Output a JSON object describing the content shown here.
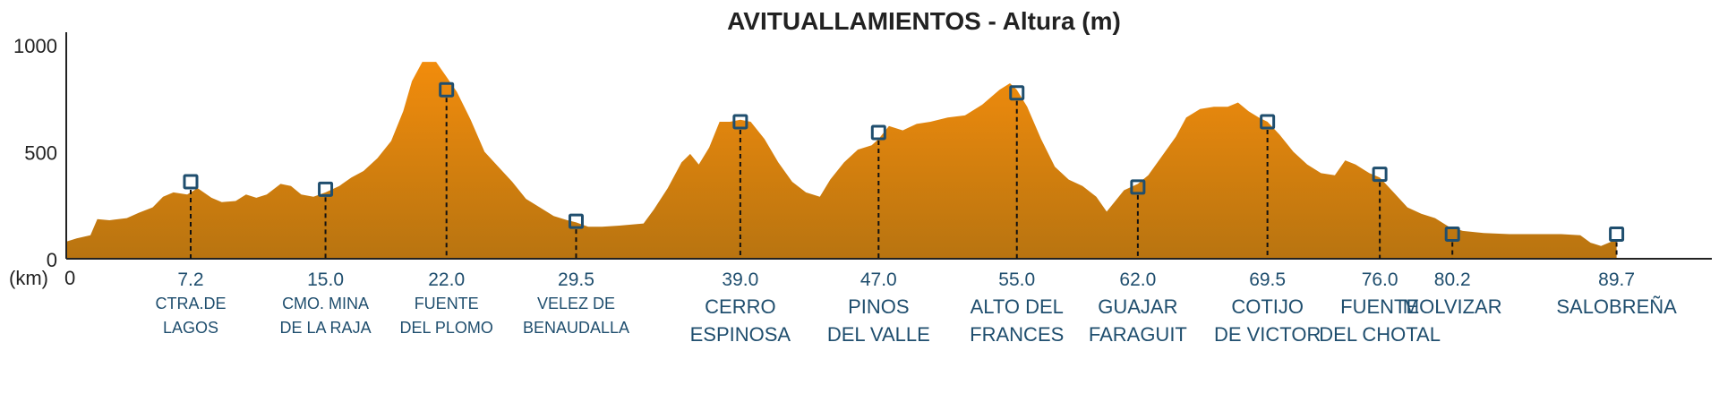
{
  "chart_data": {
    "type": "area",
    "title": "AVITUALLAMIENTOS - Altura (m)",
    "xlabel": "(km)",
    "x_origin_label": "0",
    "yticks": [
      "1000",
      "500",
      "0"
    ],
    "ytick_values": [
      1000,
      500,
      0
    ],
    "xlim": [
      0,
      92
    ],
    "ylim": [
      0,
      1000
    ],
    "grid": false,
    "colors": {
      "area_top": "#F28C0C",
      "area_bottom": "#B87410",
      "marker": "#1F4E6E",
      "label": "#1F4E6E",
      "axis": "#222222"
    },
    "profile": [
      [
        0,
        80
      ],
      [
        0.6,
        95
      ],
      [
        1.4,
        110
      ],
      [
        1.8,
        185
      ],
      [
        2.5,
        180
      ],
      [
        3.5,
        190
      ],
      [
        4.2,
        215
      ],
      [
        5.0,
        240
      ],
      [
        5.6,
        290
      ],
      [
        6.2,
        310
      ],
      [
        7.0,
        300
      ],
      [
        7.6,
        330
      ],
      [
        8.4,
        285
      ],
      [
        9.0,
        265
      ],
      [
        9.8,
        270
      ],
      [
        10.4,
        300
      ],
      [
        11.0,
        285
      ],
      [
        11.6,
        300
      ],
      [
        12.4,
        350
      ],
      [
        13.0,
        340
      ],
      [
        13.6,
        300
      ],
      [
        14.3,
        290
      ],
      [
        15.0,
        310
      ],
      [
        15.8,
        340
      ],
      [
        16.5,
        380
      ],
      [
        17.2,
        410
      ],
      [
        18.0,
        470
      ],
      [
        18.8,
        550
      ],
      [
        19.5,
        690
      ],
      [
        20.0,
        830
      ],
      [
        20.6,
        920
      ],
      [
        21.4,
        920
      ],
      [
        22.0,
        850
      ],
      [
        22.6,
        780
      ],
      [
        23.4,
        650
      ],
      [
        24.2,
        500
      ],
      [
        25.0,
        430
      ],
      [
        25.8,
        360
      ],
      [
        26.6,
        280
      ],
      [
        27.4,
        240
      ],
      [
        28.2,
        200
      ],
      [
        29.0,
        180
      ],
      [
        29.5,
        170
      ],
      [
        30.2,
        150
      ],
      [
        31.0,
        150
      ],
      [
        32.0,
        155
      ],
      [
        33.4,
        165
      ],
      [
        34.0,
        230
      ],
      [
        34.8,
        330
      ],
      [
        35.6,
        450
      ],
      [
        36.1,
        490
      ],
      [
        36.6,
        440
      ],
      [
        37.2,
        520
      ],
      [
        37.8,
        640
      ],
      [
        38.4,
        640
      ],
      [
        39.0,
        650
      ],
      [
        39.6,
        640
      ],
      [
        40.4,
        560
      ],
      [
        41.2,
        450
      ],
      [
        42.0,
        360
      ],
      [
        42.8,
        310
      ],
      [
        43.6,
        290
      ],
      [
        44.2,
        370
      ],
      [
        45.0,
        450
      ],
      [
        45.8,
        510
      ],
      [
        46.6,
        530
      ],
      [
        47.0,
        560
      ],
      [
        47.6,
        620
      ],
      [
        48.4,
        600
      ],
      [
        49.2,
        630
      ],
      [
        50.0,
        640
      ],
      [
        51.0,
        660
      ],
      [
        52.0,
        670
      ],
      [
        53.0,
        720
      ],
      [
        54.0,
        790
      ],
      [
        54.6,
        820
      ],
      [
        55.0,
        790
      ],
      [
        55.6,
        710
      ],
      [
        56.4,
        560
      ],
      [
        57.2,
        430
      ],
      [
        58.0,
        370
      ],
      [
        58.8,
        340
      ],
      [
        59.6,
        290
      ],
      [
        60.2,
        220
      ],
      [
        60.6,
        260
      ],
      [
        61.2,
        320
      ],
      [
        62.0,
        350
      ],
      [
        62.6,
        390
      ],
      [
        63.4,
        480
      ],
      [
        64.2,
        570
      ],
      [
        64.8,
        660
      ],
      [
        65.6,
        700
      ],
      [
        66.4,
        710
      ],
      [
        67.2,
        710
      ],
      [
        67.8,
        730
      ],
      [
        68.4,
        690
      ],
      [
        69.0,
        660
      ],
      [
        69.5,
        640
      ],
      [
        70.2,
        580
      ],
      [
        71.0,
        500
      ],
      [
        71.8,
        440
      ],
      [
        72.6,
        400
      ],
      [
        73.4,
        390
      ],
      [
        74.0,
        460
      ],
      [
        74.6,
        440
      ],
      [
        75.4,
        400
      ],
      [
        76.0,
        380
      ],
      [
        76.8,
        310
      ],
      [
        77.6,
        240
      ],
      [
        78.4,
        210
      ],
      [
        79.2,
        190
      ],
      [
        80.0,
        150
      ],
      [
        80.8,
        130
      ],
      [
        82.0,
        120
      ],
      [
        83.5,
        115
      ],
      [
        85.0,
        115
      ],
      [
        86.5,
        115
      ],
      [
        87.6,
        110
      ],
      [
        88.2,
        75
      ],
      [
        88.8,
        60
      ],
      [
        89.4,
        80
      ],
      [
        89.7,
        90
      ],
      [
        89.7,
        0
      ]
    ],
    "markers": [
      {
        "km": 7.2,
        "km_label": "7.2",
        "altitude": 360,
        "name": [
          "CTRA.DE",
          "LAGOS"
        ],
        "size": "small"
      },
      {
        "km": 15.0,
        "km_label": "15.0",
        "altitude": 325,
        "name": [
          "CMO. MINA",
          "DE LA RAJA"
        ],
        "size": "small"
      },
      {
        "km": 22.0,
        "km_label": "22.0",
        "altitude": 790,
        "name": [
          "FUENTE",
          "DEL PLOMO"
        ],
        "size": "small"
      },
      {
        "km": 29.5,
        "km_label": "29.5",
        "altitude": 175,
        "name": [
          "VELEZ DE",
          "BENAUDALLA"
        ],
        "size": "small"
      },
      {
        "km": 39.0,
        "km_label": "39.0",
        "altitude": 640,
        "name": [
          "CERRO",
          "ESPINOSA"
        ],
        "size": "large"
      },
      {
        "km": 47.0,
        "km_label": "47.0",
        "altitude": 590,
        "name": [
          "PINOS",
          "DEL VALLE"
        ],
        "size": "large"
      },
      {
        "km": 55.0,
        "km_label": "55.0",
        "altitude": 775,
        "name": [
          "ALTO DEL",
          "FRANCES"
        ],
        "size": "large"
      },
      {
        "km": 62.0,
        "km_label": "62.0",
        "altitude": 335,
        "name": [
          "GUAJAR",
          "FARAGUIT"
        ],
        "size": "large"
      },
      {
        "km": 69.5,
        "km_label": "69.5",
        "altitude": 640,
        "name": [
          "COTIJO",
          "DE VICTOR"
        ],
        "size": "large"
      },
      {
        "km": 76.0,
        "km_label": "76.0",
        "altitude": 395,
        "name": [
          "FUENTE",
          "DEL CHOTAL"
        ],
        "size": "large"
      },
      {
        "km": 80.2,
        "km_label": "80.2",
        "altitude": 115,
        "name": [
          "MOLVIZAR"
        ],
        "size": "large"
      },
      {
        "km": 89.7,
        "km_label": "89.7",
        "altitude": 115,
        "name": [
          "SALOBREÑA"
        ],
        "size": "large"
      }
    ]
  }
}
